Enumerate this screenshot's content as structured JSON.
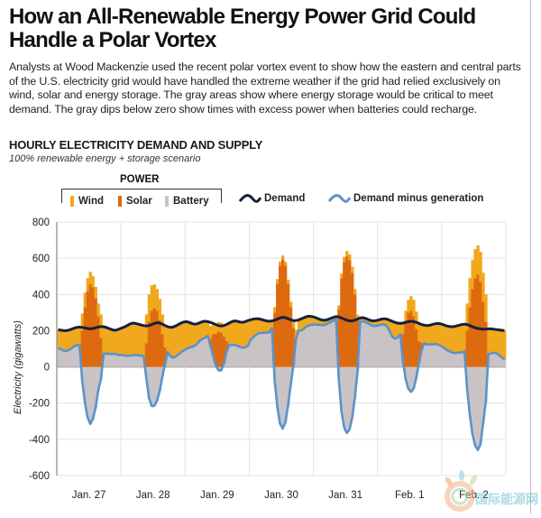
{
  "header": {
    "title": "How an All-Renewable Energy Power Grid Could Handle a Polar Vortex",
    "description": "Analysts at Wood Mackenzie used the recent polar vortex event to show how the eastern and central parts of the U.S. electricity grid would have handled the extreme weather if the grid had relied exclusively on wind, solar and energy storage. The gray areas show where energy storage would be critical to meet demand. The gray dips below zero show times with excess power when batteries could recharge."
  },
  "legend": {
    "group_label": "POWER",
    "items": [
      {
        "name": "Wind",
        "color": "#F0A81C"
      },
      {
        "name": "Solar",
        "color": "#DE6A10"
      },
      {
        "name": "Battery",
        "color": "#C9C3C6"
      }
    ],
    "lines": [
      {
        "name": "Demand",
        "color": "#14213D"
      },
      {
        "name": "Demand minus generation",
        "color": "#5B93C9"
      }
    ]
  },
  "watermark": {
    "text": "国际能源网",
    "subtext": "IN-EN.com"
  },
  "chart_data": {
    "type": "area",
    "title": "HOURLY ELECTRICITY DEMAND AND SUPPLY",
    "subtitle": "100% renewable energy + storage scenario",
    "xlabel": "",
    "ylabel": "Electricity (gigawatts)",
    "ylim": [
      -600,
      800
    ],
    "yticks": [
      800,
      600,
      400,
      200,
      0,
      -200,
      -400,
      -600
    ],
    "categories": [
      "Jan. 27",
      "Jan. 28",
      "Jan. 29",
      "Jan. 30",
      "Jan. 31",
      "Feb. 1",
      "Feb. 2"
    ],
    "grid": true,
    "legend_position": "top",
    "hours_per_day": 24,
    "series": [
      {
        "name": "Demand",
        "values": [
          205,
          203,
          200,
          200,
          203,
          208,
          214,
          218,
          220,
          218,
          215,
          212,
          210,
          212,
          216,
          220,
          222,
          222,
          218,
          212,
          206,
          202,
          204,
          210,
          216,
          222,
          230,
          238,
          242,
          240,
          236,
          232,
          228,
          226,
          228,
          234,
          240,
          244,
          242,
          236,
          228,
          222,
          218,
          220,
          226,
          234,
          242,
          248,
          250,
          246,
          240,
          236,
          238,
          244,
          250,
          252,
          250,
          246,
          240,
          234,
          228,
          226,
          228,
          234,
          242,
          250,
          254,
          252,
          248,
          246,
          250,
          256,
          260,
          264,
          266,
          266,
          262,
          258,
          254,
          252,
          254,
          258,
          264,
          270,
          274,
          272,
          266,
          260,
          256,
          256,
          260,
          266,
          272,
          278,
          280,
          278,
          274,
          268,
          262,
          258,
          258,
          262,
          268,
          274,
          278,
          276,
          270,
          264,
          258,
          254,
          254,
          258,
          264,
          270,
          272,
          268,
          262,
          256,
          254,
          256,
          260,
          264,
          266,
          264,
          258,
          252,
          246,
          242,
          240,
          242,
          246,
          250,
          252,
          250,
          246,
          240,
          234,
          230,
          228,
          230,
          234,
          238,
          240,
          238,
          234,
          228,
          224,
          222,
          222,
          226,
          230,
          234,
          236,
          234,
          228,
          222,
          216,
          212,
          210,
          208,
          208,
          210,
          210,
          208,
          206,
          204,
          202,
          200
        ]
      },
      {
        "name": "Wind",
        "values": [
          100,
          105,
          110,
          112,
          110,
          105,
          100,
          98,
          100,
          95,
          80,
          70,
          65,
          60,
          62,
          70,
          130,
          150,
          145,
          140,
          135,
          130,
          135,
          145,
          150,
          160,
          170,
          175,
          178,
          175,
          172,
          170,
          170,
          160,
          150,
          140,
          130,
          120,
          115,
          110,
          120,
          140,
          160,
          170,
          168,
          165,
          160,
          158,
          150,
          140,
          130,
          120,
          110,
          100,
          95,
          90,
          80,
          70,
          60,
          50,
          52,
          55,
          60,
          90,
          120,
          130,
          132,
          135,
          138,
          140,
          142,
          140,
          110,
          100,
          90,
          80,
          75,
          70,
          65,
          60,
          40,
          30,
          25,
          22,
          20,
          20,
          22,
          30,
          40,
          50,
          60,
          65,
          60,
          55,
          50,
          45,
          40,
          35,
          30,
          28,
          25,
          22,
          20,
          18,
          15,
          20,
          25,
          28,
          30,
          32,
          33,
          30,
          28,
          25,
          20,
          20,
          22,
          25,
          28,
          30,
          30,
          30,
          32,
          40,
          60,
          85,
          90,
          80,
          60,
          60,
          60,
          70,
          80,
          90,
          95,
          98,
          100,
          100,
          104,
          105,
          110,
          112,
          115,
          120,
          125,
          130,
          135,
          140,
          145,
          150,
          150,
          155,
          150,
          150,
          160,
          160,
          160,
          160,
          165,
          160,
          150,
          140,
          135,
          130,
          130,
          140,
          150,
          160
        ]
      },
      {
        "name": "Solar",
        "values": [
          0,
          0,
          0,
          0,
          0,
          0,
          0,
          0,
          0,
          200,
          330,
          420,
          460,
          440,
          380,
          280,
          160,
          0,
          0,
          0,
          0,
          0,
          0,
          0,
          0,
          0,
          0,
          0,
          0,
          0,
          0,
          0,
          0,
          130,
          250,
          310,
          325,
          310,
          260,
          180,
          90,
          0,
          0,
          0,
          0,
          0,
          0,
          0,
          0,
          0,
          0,
          0,
          0,
          0,
          0,
          0,
          0,
          40,
          120,
          175,
          195,
          190,
          150,
          60,
          0,
          0,
          0,
          0,
          0,
          0,
          0,
          0,
          0,
          0,
          0,
          0,
          0,
          0,
          0,
          0,
          0,
          300,
          460,
          560,
          595,
          560,
          460,
          330,
          210,
          0,
          0,
          0,
          0,
          0,
          0,
          0,
          0,
          0,
          0,
          0,
          0,
          0,
          0,
          0,
          0,
          320,
          490,
          580,
          610,
          590,
          520,
          400,
          260,
          0,
          0,
          0,
          0,
          0,
          0,
          0,
          0,
          0,
          0,
          0,
          0,
          0,
          0,
          0,
          0,
          150,
          250,
          300,
          310,
          280,
          210,
          120,
          40,
          0,
          0,
          0,
          0,
          0,
          0,
          0,
          0,
          0,
          0,
          0,
          0,
          0,
          0,
          0,
          0,
          200,
          330,
          430,
          490,
          510,
          470,
          360,
          250,
          0,
          0,
          0,
          0,
          0,
          0,
          0
        ]
      },
      {
        "name": "Demand minus generation",
        "values": [
          105,
          98,
          90,
          88,
          93,
          103,
          114,
          120,
          120,
          -77,
          -195,
          -278,
          -315,
          -288,
          -226,
          -130,
          -68,
          72,
          73,
          72,
          71,
          72,
          69,
          65,
          66,
          62,
          60,
          63,
          64,
          65,
          64,
          62,
          58,
          -64,
          -172,
          -216,
          -215,
          -186,
          -133,
          -54,
          18,
          82,
          58,
          50,
          58,
          69,
          82,
          90,
          100,
          106,
          110,
          116,
          128,
          144,
          155,
          162,
          170,
          116,
          60,
          9,
          -19,
          -19,
          18,
          84,
          122,
          120,
          122,
          117,
          110,
          106,
          108,
          116,
          150,
          164,
          176,
          186,
          187,
          188,
          189,
          192,
          214,
          -72,
          -221,
          -312,
          -341,
          -308,
          -216,
          -100,
          6,
          156,
          200,
          201,
          212,
          223,
          230,
          233,
          234,
          233,
          232,
          230,
          233,
          240,
          248,
          256,
          263,
          -64,
          -245,
          -334,
          -365,
          -346,
          -280,
          -172,
          -26,
          249,
          252,
          248,
          240,
          231,
          226,
          226,
          230,
          234,
          234,
          224,
          198,
          167,
          156,
          162,
          180,
          32,
          -64,
          -120,
          -138,
          -120,
          -59,
          22,
          94,
          130,
          124,
          125,
          124,
          126,
          125,
          118,
          109,
          98,
          89,
          82,
          77,
          76,
          80,
          79,
          86,
          -116,
          -262,
          -368,
          -434,
          -458,
          -429,
          -312,
          -192,
          70,
          75,
          78,
          76,
          64,
          52,
          40
        ]
      }
    ]
  }
}
